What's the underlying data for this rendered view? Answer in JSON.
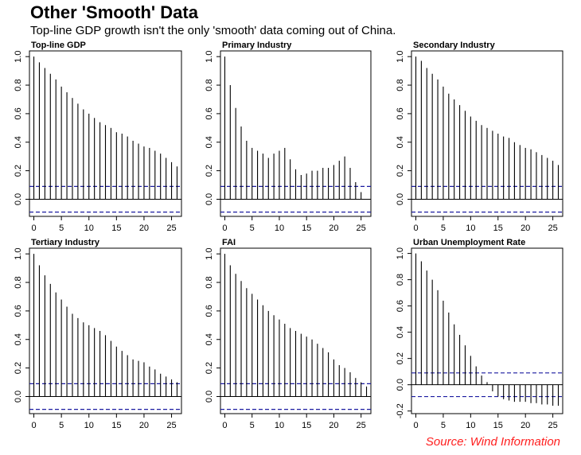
{
  "title": "Other 'Smooth' Data",
  "subtitle": "Top-line GDP growth isn't the only 'smooth' data coming out of China.",
  "source": "Source: Wind Information",
  "colors": {
    "bar": "#000000",
    "ci": "#1a1aa0",
    "source": "#ff2020"
  },
  "chart_data": [
    {
      "type": "bar",
      "title": "Top-line GDP",
      "x": [
        0,
        1,
        2,
        3,
        4,
        5,
        6,
        7,
        8,
        9,
        10,
        11,
        12,
        13,
        14,
        15,
        16,
        17,
        18,
        19,
        20,
        21,
        22,
        23,
        24,
        25,
        26
      ],
      "values": [
        1.0,
        0.96,
        0.92,
        0.88,
        0.84,
        0.79,
        0.75,
        0.71,
        0.67,
        0.63,
        0.6,
        0.57,
        0.54,
        0.52,
        0.5,
        0.47,
        0.46,
        0.44,
        0.41,
        0.39,
        0.37,
        0.36,
        0.34,
        0.32,
        0.29,
        0.26,
        0.23
      ],
      "ci": 0.09,
      "yticks": [
        0.0,
        0.2,
        0.4,
        0.6,
        0.8,
        1.0
      ],
      "xticks": [
        0,
        5,
        10,
        15,
        20,
        25
      ],
      "ylim": [
        -0.12,
        1.04
      ],
      "xlim": [
        -0.8,
        26.8
      ]
    },
    {
      "type": "bar",
      "title": "Primary Industry",
      "x": [
        0,
        1,
        2,
        3,
        4,
        5,
        6,
        7,
        8,
        9,
        10,
        11,
        12,
        13,
        14,
        15,
        16,
        17,
        18,
        19,
        20,
        21,
        22,
        23,
        24,
        25,
        26
      ],
      "values": [
        1.0,
        0.8,
        0.64,
        0.51,
        0.41,
        0.36,
        0.34,
        0.32,
        0.29,
        0.32,
        0.34,
        0.36,
        0.28,
        0.21,
        0.17,
        0.18,
        0.2,
        0.2,
        0.22,
        0.22,
        0.24,
        0.27,
        0.3,
        0.22,
        0.12,
        0.05,
        0.0
      ],
      "ci": 0.09,
      "yticks": [
        0.0,
        0.2,
        0.4,
        0.6,
        0.8,
        1.0
      ],
      "xticks": [
        0,
        5,
        10,
        15,
        20,
        25
      ],
      "ylim": [
        -0.12,
        1.04
      ],
      "xlim": [
        -0.8,
        26.8
      ]
    },
    {
      "type": "bar",
      "title": "Secondary Industry",
      "x": [
        0,
        1,
        2,
        3,
        4,
        5,
        6,
        7,
        8,
        9,
        10,
        11,
        12,
        13,
        14,
        15,
        16,
        17,
        18,
        19,
        20,
        21,
        22,
        23,
        24,
        25,
        26
      ],
      "values": [
        1.0,
        0.97,
        0.92,
        0.88,
        0.84,
        0.79,
        0.74,
        0.7,
        0.66,
        0.62,
        0.58,
        0.55,
        0.52,
        0.5,
        0.48,
        0.46,
        0.44,
        0.43,
        0.4,
        0.38,
        0.36,
        0.35,
        0.33,
        0.31,
        0.29,
        0.27,
        0.24
      ],
      "ci": 0.09,
      "yticks": [
        0.0,
        0.2,
        0.4,
        0.6,
        0.8,
        1.0
      ],
      "xticks": [
        0,
        5,
        10,
        15,
        20,
        25
      ],
      "ylim": [
        -0.12,
        1.04
      ],
      "xlim": [
        -0.8,
        26.8
      ]
    },
    {
      "type": "bar",
      "title": "Tertiary Industry",
      "x": [
        0,
        1,
        2,
        3,
        4,
        5,
        6,
        7,
        8,
        9,
        10,
        11,
        12,
        13,
        14,
        15,
        16,
        17,
        18,
        19,
        20,
        21,
        22,
        23,
        24,
        25,
        26
      ],
      "values": [
        1.0,
        0.92,
        0.85,
        0.79,
        0.73,
        0.68,
        0.63,
        0.58,
        0.55,
        0.52,
        0.5,
        0.48,
        0.46,
        0.43,
        0.39,
        0.35,
        0.32,
        0.29,
        0.26,
        0.25,
        0.24,
        0.21,
        0.19,
        0.16,
        0.14,
        0.12,
        0.1
      ],
      "ci": 0.09,
      "yticks": [
        0.0,
        0.2,
        0.4,
        0.6,
        0.8,
        1.0
      ],
      "xticks": [
        0,
        5,
        10,
        15,
        20,
        25
      ],
      "ylim": [
        -0.12,
        1.04
      ],
      "xlim": [
        -0.8,
        26.8
      ]
    },
    {
      "type": "bar",
      "title": "FAI",
      "x": [
        0,
        1,
        2,
        3,
        4,
        5,
        6,
        7,
        8,
        9,
        10,
        11,
        12,
        13,
        14,
        15,
        16,
        17,
        18,
        19,
        20,
        21,
        22,
        23,
        24,
        25,
        26
      ],
      "values": [
        1.0,
        0.92,
        0.86,
        0.81,
        0.76,
        0.72,
        0.68,
        0.64,
        0.6,
        0.57,
        0.54,
        0.51,
        0.48,
        0.46,
        0.44,
        0.42,
        0.4,
        0.37,
        0.34,
        0.31,
        0.26,
        0.22,
        0.2,
        0.17,
        0.13,
        0.1,
        0.07
      ],
      "ci": 0.09,
      "yticks": [
        0.0,
        0.2,
        0.4,
        0.6,
        0.8,
        1.0
      ],
      "xticks": [
        0,
        5,
        10,
        15,
        20,
        25
      ],
      "ylim": [
        -0.12,
        1.04
      ],
      "xlim": [
        -0.8,
        26.8
      ]
    },
    {
      "type": "bar",
      "title": "Urban Unemployment Rate",
      "x": [
        0,
        1,
        2,
        3,
        4,
        5,
        6,
        7,
        8,
        9,
        10,
        11,
        12,
        13,
        14,
        15,
        16,
        17,
        18,
        19,
        20,
        21,
        22,
        23,
        24,
        25,
        26
      ],
      "values": [
        1.0,
        0.94,
        0.87,
        0.8,
        0.72,
        0.64,
        0.55,
        0.46,
        0.38,
        0.3,
        0.22,
        0.14,
        0.07,
        0.02,
        -0.05,
        -0.09,
        -0.11,
        -0.12,
        -0.13,
        -0.13,
        -0.13,
        -0.14,
        -0.14,
        -0.15,
        -0.15,
        -0.16,
        -0.16
      ],
      "ci": 0.09,
      "yticks": [
        -0.2,
        0.0,
        0.2,
        0.4,
        0.6,
        0.8,
        1.0
      ],
      "xticks": [
        0,
        5,
        10,
        15,
        20,
        25
      ],
      "ylim": [
        -0.22,
        1.04
      ],
      "xlim": [
        -0.8,
        26.8
      ]
    }
  ]
}
